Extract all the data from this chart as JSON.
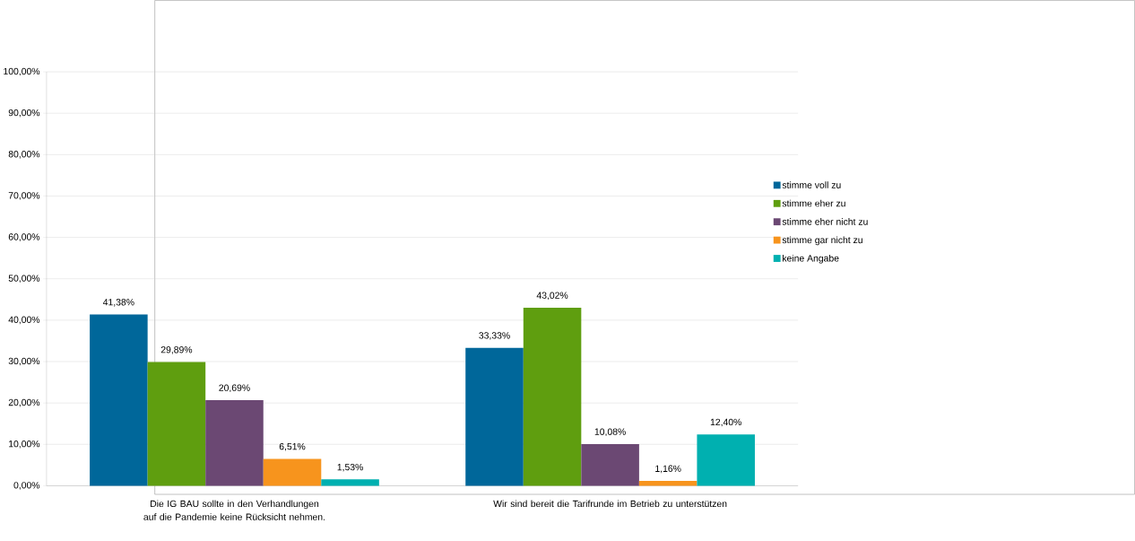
{
  "chart_data": {
    "type": "bar",
    "categories": [
      "Die IG BAU sollte in den Verhandlungen auf die Pandemie keine Rücksicht nehmen.",
      "Wir sind bereit die Tarifrunde im Betrieb zu unterstützen"
    ],
    "series": [
      {
        "name": "stimme voll zu",
        "color": "#00679a",
        "values": [
          41.38,
          33.33
        ],
        "value_labels": [
          "41,38%",
          "33,33%"
        ]
      },
      {
        "name": "stimme eher zu",
        "color": "#5f9e0f",
        "values": [
          29.89,
          43.02
        ],
        "value_labels": [
          "29,89%",
          "43,02%"
        ]
      },
      {
        "name": "stimme eher nicht zu",
        "color": "#6b4873",
        "values": [
          20.69,
          10.08
        ],
        "value_labels": [
          "20,69%",
          "10,08%"
        ]
      },
      {
        "name": "stimme gar nicht zu",
        "color": "#f7941d",
        "values": [
          6.51,
          1.16
        ],
        "value_labels": [
          "6,51%",
          "1,16%"
        ]
      },
      {
        "name": "keine Angabe",
        "color": "#00b0b0",
        "values": [
          1.53,
          12.4
        ],
        "value_labels": [
          "1,53%",
          "12,40%"
        ]
      }
    ],
    "ylim": [
      0,
      100
    ],
    "yticks": [
      {
        "value": 0,
        "label": "0,00%"
      },
      {
        "value": 10,
        "label": "10,00%"
      },
      {
        "value": 20,
        "label": "20,00%"
      },
      {
        "value": 30,
        "label": "30,00%"
      },
      {
        "value": 40,
        "label": "40,00%"
      },
      {
        "value": 50,
        "label": "50,00%"
      },
      {
        "value": 60,
        "label": "60,00%"
      },
      {
        "value": 70,
        "label": "70,00%"
      },
      {
        "value": 80,
        "label": "80,00%"
      },
      {
        "value": 90,
        "label": "90,00%"
      },
      {
        "value": 100,
        "label": "100,00%"
      }
    ],
    "grid": "y",
    "legend": "right"
  }
}
